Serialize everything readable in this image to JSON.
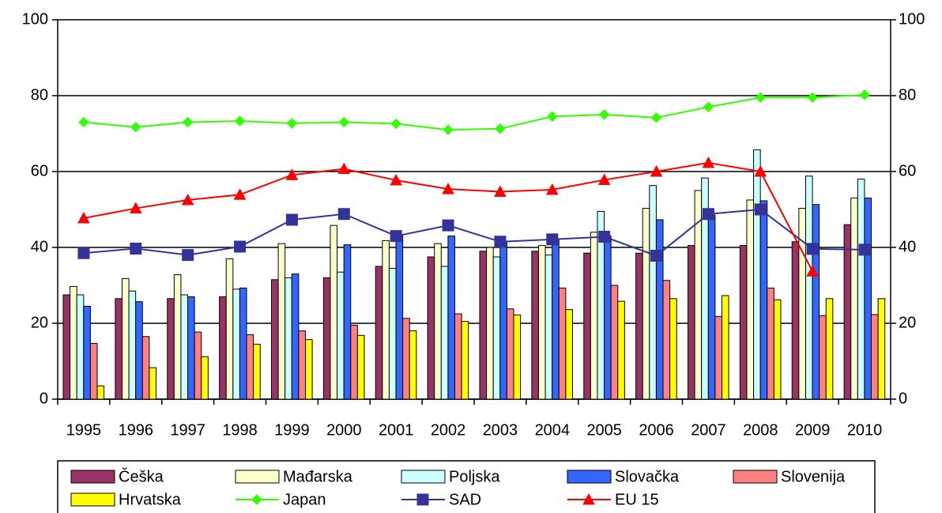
{
  "chart_data": {
    "type": "bar",
    "categories": [
      "1995",
      "1996",
      "1997",
      "1998",
      "1999",
      "2000",
      "2001",
      "2002",
      "2003",
      "2004",
      "2005",
      "2006",
      "2007",
      "2008",
      "2009",
      "2010"
    ],
    "ylim": [
      0,
      100
    ],
    "yticks": [
      0,
      20,
      40,
      60,
      80,
      100
    ],
    "y2lim": [
      0,
      100
    ],
    "y2ticks": [
      0,
      20,
      40,
      60,
      80,
      100
    ],
    "grid": true,
    "legend": "bottom",
    "series": [
      {
        "name": "Češka",
        "type": "bar",
        "color": "#993366",
        "values": [
          27.5,
          26.5,
          26.5,
          27,
          31.5,
          32,
          35,
          37.5,
          39,
          39,
          38.5,
          38.5,
          40.5,
          40.5,
          41.5,
          46
        ]
      },
      {
        "name": "Mađarska",
        "type": "bar",
        "color": "#FFFFCC",
        "values": [
          29.7,
          31.8,
          32.8,
          37,
          41,
          45.8,
          41.8,
          41,
          40,
          40.5,
          44,
          50.3,
          55,
          52.5,
          50.3,
          53
        ]
      },
      {
        "name": "Poljska",
        "type": "bar",
        "color": "#CCFFFF",
        "values": [
          27.5,
          28.5,
          27.5,
          29,
          32,
          33.5,
          34.5,
          35,
          37.5,
          38,
          49.5,
          56.3,
          58.3,
          65.7,
          58.8,
          58
        ]
      },
      {
        "name": "Slovačka",
        "type": "bar",
        "color": "#3366FF",
        "values": [
          24.5,
          25.7,
          27,
          29.3,
          33,
          40.7,
          43,
          43,
          41.5,
          42,
          43,
          47.3,
          48.5,
          52.3,
          51.3,
          53
        ]
      },
      {
        "name": "Slovenija",
        "type": "bar",
        "color": "#FF8080",
        "values": [
          14.7,
          16.5,
          17.7,
          17,
          18,
          19.5,
          21.3,
          22.5,
          23.8,
          29.3,
          30,
          31.3,
          21.8,
          29.3,
          22,
          22.3
        ]
      },
      {
        "name": "Hrvatska",
        "type": "bar",
        "color": "#FFFF00",
        "values": [
          3.5,
          8.3,
          11.2,
          14.5,
          15.7,
          16.8,
          18,
          20.5,
          22.2,
          23.6,
          25.8,
          26.5,
          27.3,
          26.2,
          26.5,
          26.5
        ]
      },
      {
        "name": "Japan",
        "type": "line",
        "marker": "diamond",
        "color": "#33FF00",
        "values": [
          73,
          71.7,
          73,
          73.3,
          72.7,
          73,
          72.6,
          71,
          71.3,
          74.5,
          75,
          74.2,
          77,
          79.5,
          79.5,
          80.2
        ]
      },
      {
        "name": "SAD",
        "type": "line",
        "marker": "square",
        "color": "#333399",
        "values": [
          38.5,
          39.7,
          38,
          40.2,
          47.3,
          48.8,
          43,
          45.8,
          41.5,
          42.1,
          42.8,
          37.8,
          48.8,
          50,
          39.6,
          39.4
        ]
      },
      {
        "name": "EU 15",
        "type": "line",
        "marker": "triangle",
        "color": "#FF0000",
        "values": [
          47.7,
          50.3,
          52.5,
          53.9,
          59.1,
          60.7,
          57.7,
          55.4,
          54.7,
          55.2,
          57.8,
          60,
          62.3,
          60,
          33.7,
          null
        ]
      }
    ]
  }
}
